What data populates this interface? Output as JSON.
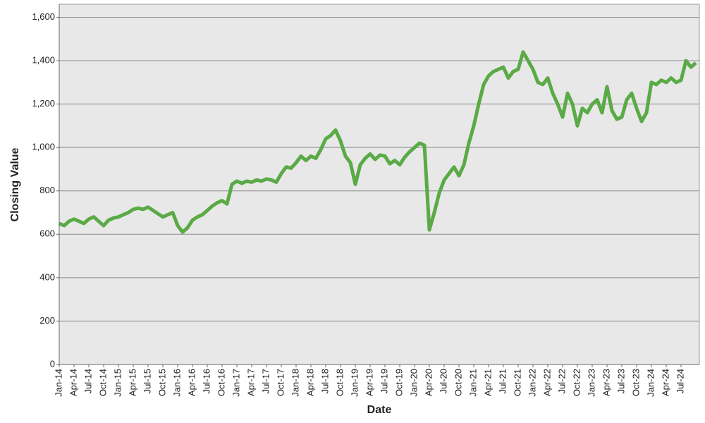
{
  "chart_data": {
    "type": "line",
    "x_label": "Date",
    "y_label": "Closing Value",
    "categories": [
      "Jan-14",
      null,
      null,
      "Apr-14",
      null,
      null,
      "Jul-14",
      null,
      null,
      "Oct-14",
      null,
      null,
      "Jan-15",
      null,
      null,
      "Apr-15",
      null,
      null,
      "Jul-15",
      null,
      null,
      "Oct-15",
      null,
      null,
      "Jan-16",
      null,
      null,
      "Apr-16",
      null,
      null,
      "Jul-16",
      null,
      null,
      "Oct-16",
      null,
      null,
      "Jan-17",
      null,
      null,
      "Apr-17",
      null,
      null,
      "Jul-17",
      null,
      null,
      "Oct-17",
      null,
      null,
      "Jan-18",
      null,
      null,
      "Apr-18",
      null,
      null,
      "Jul-18",
      null,
      null,
      "Oct-18",
      null,
      null,
      "Jan-19",
      null,
      null,
      "Apr-19",
      null,
      null,
      "Jul-19",
      null,
      null,
      "Oct-19",
      null,
      null,
      "Jan-20",
      null,
      null,
      "Apr-20",
      null,
      null,
      "Jul-20",
      null,
      null,
      "Oct-20",
      null,
      null,
      "Jan-21",
      null,
      null,
      "Apr-21",
      null,
      null,
      "Jul-21",
      null,
      null,
      "Oct-21",
      null,
      null,
      "Jan-22",
      null,
      null,
      "Apr-22",
      null,
      null,
      "Jul-22",
      null,
      null,
      "Oct-22",
      null,
      null,
      "Jan-23",
      null,
      null,
      "Apr-23",
      null,
      null,
      "Jul-23",
      null,
      null,
      "Oct-23",
      null,
      null,
      "Jan-24",
      null,
      null,
      "Apr-24",
      null,
      null,
      "Jul-24",
      null,
      null,
      null
    ],
    "values": [
      650,
      640,
      660,
      670,
      660,
      650,
      670,
      680,
      660,
      640,
      665,
      675,
      680,
      690,
      700,
      715,
      720,
      715,
      725,
      710,
      695,
      680,
      690,
      700,
      640,
      610,
      630,
      665,
      680,
      690,
      710,
      730,
      745,
      755,
      740,
      830,
      845,
      835,
      845,
      840,
      850,
      845,
      855,
      850,
      840,
      880,
      910,
      905,
      930,
      960,
      940,
      960,
      950,
      990,
      1040,
      1055,
      1080,
      1030,
      960,
      930,
      830,
      920,
      950,
      970,
      945,
      965,
      960,
      925,
      940,
      920,
      955,
      980,
      1000,
      1020,
      1010,
      620,
      700,
      790,
      850,
      880,
      910,
      870,
      920,
      1020,
      1100,
      1200,
      1290,
      1330,
      1350,
      1360,
      1370,
      1320,
      1350,
      1360,
      1440,
      1400,
      1360,
      1300,
      1290,
      1320,
      1250,
      1200,
      1140,
      1250,
      1200,
      1100,
      1180,
      1160,
      1200,
      1220,
      1160,
      1280,
      1170,
      1130,
      1140,
      1220,
      1250,
      1180,
      1120,
      1160,
      1300,
      1290,
      1310,
      1300,
      1320,
      1300,
      1310,
      1400,
      1370,
      1390
    ],
    "color": "#5aaa46",
    "ylim": [
      0,
      1660
    ],
    "yticks": [
      0,
      200,
      400,
      600,
      800,
      {
        "value": 1000,
        "label": "1,000"
      },
      {
        "value": 1200,
        "label": "1,200"
      },
      {
        "value": 1400,
        "label": "1,400"
      },
      {
        "value": 1600,
        "label": "1,600"
      }
    ],
    "grid": true
  }
}
